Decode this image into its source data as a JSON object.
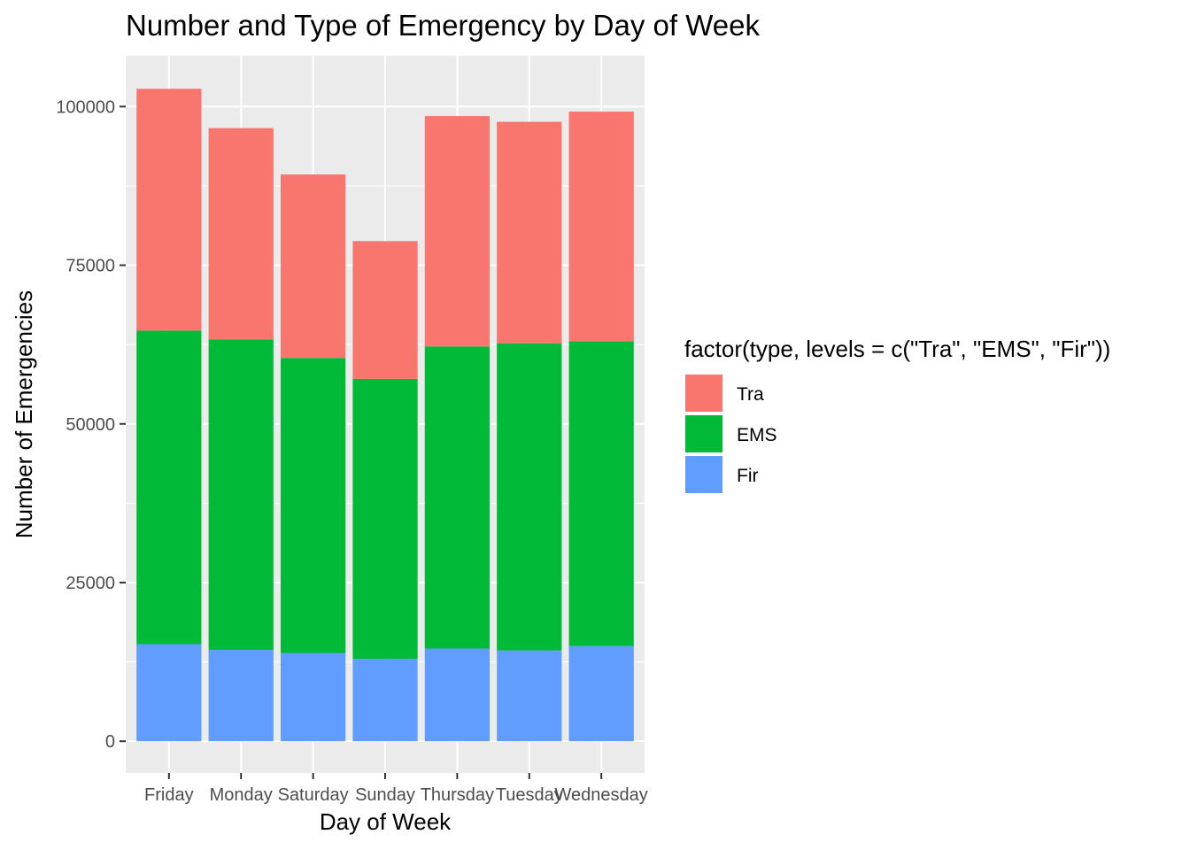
{
  "chart_data": {
    "type": "bar",
    "stacked": true,
    "title": "Number and Type of Emergency by Day of Week",
    "xlabel": "Day of Week",
    "ylabel": "Number of Emergencies",
    "categories": [
      "Friday",
      "Monday",
      "Saturday",
      "Sunday",
      "Thursday",
      "Tuesday",
      "Wednesday"
    ],
    "series": [
      {
        "name": "Fir",
        "color": "#619CFF",
        "values": [
          15300,
          14400,
          13900,
          13000,
          14600,
          14300,
          15000
        ]
      },
      {
        "name": "EMS",
        "color": "#00BA38",
        "values": [
          49400,
          48900,
          46500,
          44100,
          47600,
          48400,
          48000
        ]
      },
      {
        "name": "Tra",
        "color": "#F8766D",
        "values": [
          38100,
          33300,
          28900,
          21700,
          36300,
          34900,
          36200
        ]
      }
    ],
    "ylim": [
      -5000,
      108000
    ],
    "yticks": [
      0,
      25000,
      50000,
      75000,
      100000
    ],
    "ytick_labels": [
      "0",
      "25000",
      "50000",
      "75000",
      "100000"
    ],
    "grid": true,
    "legend": {
      "title": "factor(type, levels = c(\"Tra\", \"EMS\", \"Fir\"))",
      "position": "right",
      "order": [
        "Tra",
        "EMS",
        "Fir"
      ]
    }
  }
}
